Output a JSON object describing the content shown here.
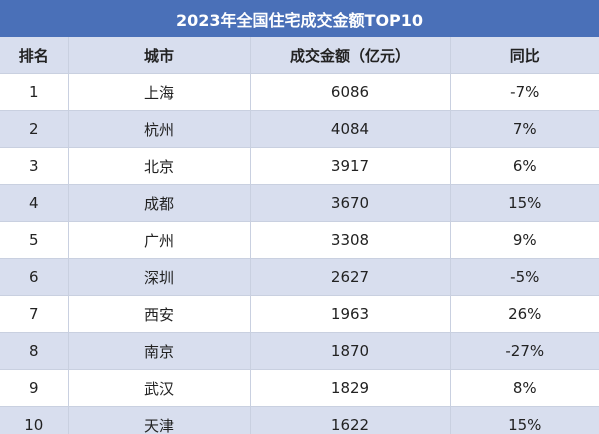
{
  "table": {
    "title": "2023年全国住宅成交金额TOP10",
    "header": [
      "排名",
      "城市",
      "成交金额（亿元）",
      "同比"
    ],
    "rows": [
      [
        "1",
        "上海",
        "6086",
        "-7%"
      ],
      [
        "2",
        "杭州",
        "4084",
        "7%"
      ],
      [
        "3",
        "北京",
        "3917",
        "6%"
      ],
      [
        "4",
        "成都",
        "3670",
        "15%"
      ],
      [
        "5",
        "广州",
        "3308",
        "9%"
      ],
      [
        "6",
        "深圳",
        "2627",
        "-5%"
      ],
      [
        "7",
        "西安",
        "1963",
        "26%"
      ],
      [
        "8",
        "南京",
        "1870",
        "-27%"
      ],
      [
        "9",
        "武汉",
        "1829",
        "8%"
      ],
      [
        "10",
        "天津",
        "1622",
        "15%"
      ]
    ]
  }
}
